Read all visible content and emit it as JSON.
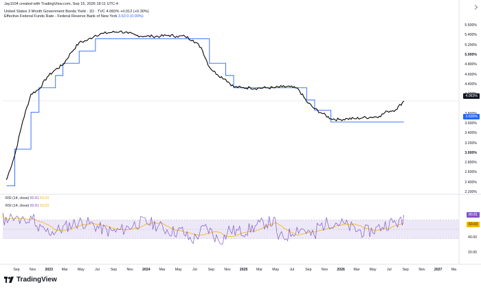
{
  "header": {
    "creator": "Jay1104 created with TradingView.com, Sep 15, 2026 18:11 UTC-4",
    "series1_name": "United States 3 Month Government Bonds Yield · 1D · TVC",
    "series1_value": "4.060%",
    "series1_change": "+0.012 (+0.30%)",
    "series2_name": "Effective Federal Funds Rate - Federal Reserve Bank of New York",
    "series2_value": "3.63",
    "series2_change": "0 (0.00%)"
  },
  "price_axis": {
    "labels": [
      "5.600%",
      "5.400%",
      "5.200%",
      "5.000%",
      "4.800%",
      "4.600%",
      "4.400%",
      "4.200%",
      "3.800%",
      "3.600%",
      "3.400%",
      "3.200%",
      "3.000%",
      "2.800%",
      "2.600%",
      "2.400%",
      "2.200%"
    ],
    "current_tag": "4.063%",
    "effr_tag": "3.630%"
  },
  "time_axis": {
    "labels": [
      "Sep",
      "Nov",
      "2023",
      "Mar",
      "May",
      "Jul",
      "Sep",
      "Nov",
      "2024",
      "Mar",
      "May",
      "Jul",
      "Sep",
      "Nov",
      "2025",
      "Mar",
      "May",
      "Jul",
      "Sep",
      "Nov",
      "2026",
      "Mar",
      "May",
      "Jul",
      "Sep",
      "Nov",
      "2027",
      "Ma"
    ]
  },
  "rsi": {
    "label1": "RSI (14, close)",
    "label1_v1": "80.81",
    "label1_v2": "63.03",
    "label2": "RSI (14, close)",
    "label2_v1": "80.81",
    "label2_v2": "63.03",
    "axis_labels": [
      "40.00",
      "20.00"
    ],
    "tag_rsi": "80.81",
    "tag_ma": "63.03"
  },
  "branding": {
    "logo_text": "TradingView"
  },
  "colors": {
    "yield_line": "#000000",
    "effr_line": "#2962ff",
    "rsi_line": "#7e57c2",
    "rsi_ma": "#f5b300",
    "band": "#e1d9f3"
  },
  "chart_data": {
    "type": "line",
    "series": [
      {
        "name": "United States 3 Month Government Bonds Yield",
        "x": [
          "2022-08",
          "2022-09",
          "2022-10",
          "2022-11",
          "2022-12",
          "2023-01",
          "2023-02",
          "2023-03",
          "2023-04",
          "2023-05",
          "2023-06",
          "2023-07",
          "2023-08",
          "2023-09",
          "2023-10",
          "2023-11",
          "2023-12",
          "2024-01",
          "2024-02",
          "2024-03",
          "2024-04",
          "2024-05",
          "2024-06",
          "2024-07",
          "2024-08",
          "2024-09",
          "2024-10",
          "2024-11",
          "2024-12",
          "2025-01",
          "2025-02",
          "2025-03",
          "2025-04",
          "2025-05",
          "2025-06",
          "2025-07",
          "2025-08",
          "2025-09",
          "2025-10",
          "2025-11",
          "2025-12",
          "2026-01",
          "2026-02",
          "2026-03",
          "2026-04",
          "2026-05",
          "2026-06",
          "2026-07",
          "2026-08",
          "2026-09"
        ],
        "values": [
          2.45,
          2.95,
          3.65,
          4.2,
          4.3,
          4.55,
          4.7,
          4.8,
          5.05,
          5.25,
          5.3,
          5.4,
          5.44,
          5.46,
          5.48,
          5.44,
          5.4,
          5.38,
          5.38,
          5.38,
          5.4,
          5.38,
          5.38,
          5.3,
          5.15,
          4.75,
          4.6,
          4.5,
          4.35,
          4.33,
          4.33,
          4.32,
          4.33,
          4.33,
          4.35,
          4.35,
          4.3,
          4.05,
          3.9,
          3.8,
          3.7,
          3.68,
          3.7,
          3.7,
          3.72,
          3.73,
          3.75,
          3.85,
          3.88,
          4.06
        ]
      },
      {
        "name": "Effective Federal Funds Rate - Federal Reserve Bank of New York",
        "x": [
          "2022-08",
          "2022-09",
          "2022-10",
          "2022-11",
          "2022-12",
          "2023-01",
          "2023-02",
          "2023-03",
          "2023-04",
          "2023-05",
          "2023-06",
          "2023-07",
          "2023-08",
          "2024-08",
          "2024-09",
          "2024-10",
          "2024-11",
          "2024-12",
          "2025-08",
          "2025-09",
          "2025-10",
          "2025-11",
          "2025-12",
          "2026-09"
        ],
        "values": [
          2.33,
          3.08,
          3.08,
          3.83,
          4.33,
          4.33,
          4.58,
          4.83,
          4.83,
          5.08,
          5.08,
          5.33,
          5.33,
          5.33,
          4.83,
          4.83,
          4.58,
          4.33,
          4.33,
          4.08,
          3.87,
          3.87,
          3.63,
          3.63
        ]
      }
    ],
    "ylim": [
      2.2,
      5.7
    ],
    "rsi": {
      "range": [
        0,
        100
      ],
      "band": [
        30,
        70
      ],
      "last_rsi": 80.81,
      "last_ma": 63.03
    }
  }
}
